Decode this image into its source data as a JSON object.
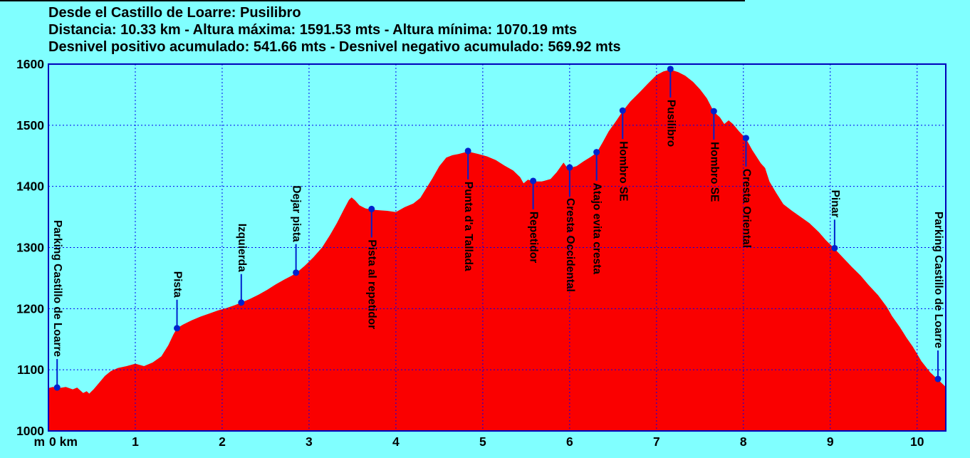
{
  "header": {
    "title": "Desde el Castillo de Loarre: Pusilibro",
    "stats_line1": "Distancia: 10.33 km - Altura máxima: 1591.53 mts - Altura mínima: 1070.19 mts",
    "stats_line2": "Desnivel positivo acumulado: 541.66 mts - Desnivel negativo acumulado: 569.92 mts"
  },
  "colors": {
    "background": "#80ffff",
    "profile_fill": "#fa0000",
    "grid": "#0000ee",
    "frame": "#0000bb",
    "marker": "#0022cc",
    "text": "#000000",
    "top_edge": "#000000"
  },
  "chart_data": {
    "type": "area",
    "title": "Desde el Castillo de Loarre: Pusilibro",
    "xlabel": "km",
    "ylabel": "m",
    "x_origin_label": "0 km",
    "y_unit_label": "m",
    "xlim": [
      0,
      10.33
    ],
    "ylim": [
      1000,
      1600
    ],
    "x_ticks": [
      1,
      2,
      3,
      4,
      5,
      6,
      7,
      8,
      9,
      10
    ],
    "y_ticks": [
      1000,
      1100,
      1200,
      1300,
      1400,
      1500,
      1600
    ],
    "grid": "dashed",
    "profile": [
      [
        0.0,
        1070
      ],
      [
        0.05,
        1072
      ],
      [
        0.12,
        1070
      ],
      [
        0.2,
        1072
      ],
      [
        0.28,
        1068
      ],
      [
        0.33,
        1071
      ],
      [
        0.4,
        1062
      ],
      [
        0.44,
        1065
      ],
      [
        0.47,
        1061
      ],
      [
        0.52,
        1068
      ],
      [
        0.58,
        1078
      ],
      [
        0.65,
        1090
      ],
      [
        0.72,
        1098
      ],
      [
        0.8,
        1103
      ],
      [
        0.9,
        1106
      ],
      [
        1.0,
        1110
      ],
      [
        1.1,
        1106
      ],
      [
        1.2,
        1112
      ],
      [
        1.3,
        1122
      ],
      [
        1.38,
        1140
      ],
      [
        1.44,
        1158
      ],
      [
        1.48,
        1168
      ],
      [
        1.55,
        1174
      ],
      [
        1.65,
        1181
      ],
      [
        1.75,
        1187
      ],
      [
        1.85,
        1192
      ],
      [
        1.95,
        1197
      ],
      [
        2.05,
        1201
      ],
      [
        2.15,
        1206
      ],
      [
        2.22,
        1210
      ],
      [
        2.32,
        1216
      ],
      [
        2.42,
        1223
      ],
      [
        2.52,
        1231
      ],
      [
        2.62,
        1240
      ],
      [
        2.72,
        1248
      ],
      [
        2.79,
        1253
      ],
      [
        2.85,
        1258
      ],
      [
        2.95,
        1270
      ],
      [
        3.05,
        1284
      ],
      [
        3.15,
        1300
      ],
      [
        3.24,
        1320
      ],
      [
        3.32,
        1340
      ],
      [
        3.4,
        1362
      ],
      [
        3.46,
        1378
      ],
      [
        3.49,
        1382
      ],
      [
        3.53,
        1377
      ],
      [
        3.58,
        1369
      ],
      [
        3.65,
        1364
      ],
      [
        3.72,
        1362
      ],
      [
        3.8,
        1361
      ],
      [
        3.9,
        1360
      ],
      [
        4.0,
        1358
      ],
      [
        4.1,
        1366
      ],
      [
        4.2,
        1372
      ],
      [
        4.28,
        1381
      ],
      [
        4.35,
        1397
      ],
      [
        4.42,
        1413
      ],
      [
        4.5,
        1433
      ],
      [
        4.58,
        1447
      ],
      [
        4.65,
        1451
      ],
      [
        4.72,
        1453
      ],
      [
        4.83,
        1457
      ],
      [
        4.95,
        1453
      ],
      [
        5.05,
        1449
      ],
      [
        5.15,
        1443
      ],
      [
        5.25,
        1434
      ],
      [
        5.35,
        1426
      ],
      [
        5.43,
        1415
      ],
      [
        5.47,
        1405
      ],
      [
        5.52,
        1411
      ],
      [
        5.58,
        1408
      ],
      [
        5.68,
        1408
      ],
      [
        5.78,
        1412
      ],
      [
        5.85,
        1423
      ],
      [
        5.93,
        1439
      ],
      [
        5.97,
        1431
      ],
      [
        6.0,
        1430
      ],
      [
        6.08,
        1433
      ],
      [
        6.16,
        1441
      ],
      [
        6.24,
        1448
      ],
      [
        6.31,
        1455
      ],
      [
        6.38,
        1472
      ],
      [
        6.45,
        1490
      ],
      [
        6.53,
        1506
      ],
      [
        6.61,
        1523
      ],
      [
        6.7,
        1539
      ],
      [
        6.8,
        1553
      ],
      [
        6.9,
        1568
      ],
      [
        7.0,
        1582
      ],
      [
        7.08,
        1588
      ],
      [
        7.16,
        1591
      ],
      [
        7.25,
        1587
      ],
      [
        7.33,
        1581
      ],
      [
        7.42,
        1571
      ],
      [
        7.5,
        1559
      ],
      [
        7.58,
        1544
      ],
      [
        7.66,
        1522
      ],
      [
        7.73,
        1513
      ],
      [
        7.78,
        1502
      ],
      [
        7.83,
        1508
      ],
      [
        7.88,
        1502
      ],
      [
        7.95,
        1490
      ],
      [
        8.03,
        1478
      ],
      [
        8.1,
        1460
      ],
      [
        8.2,
        1438
      ],
      [
        8.25,
        1430
      ],
      [
        8.3,
        1408
      ],
      [
        8.38,
        1389
      ],
      [
        8.46,
        1371
      ],
      [
        8.56,
        1360
      ],
      [
        8.65,
        1351
      ],
      [
        8.76,
        1340
      ],
      [
        8.87,
        1325
      ],
      [
        8.95,
        1312
      ],
      [
        9.05,
        1298
      ],
      [
        9.15,
        1283
      ],
      [
        9.25,
        1268
      ],
      [
        9.35,
        1254
      ],
      [
        9.44,
        1239
      ],
      [
        9.55,
        1222
      ],
      [
        9.65,
        1203
      ],
      [
        9.71,
        1188
      ],
      [
        9.8,
        1170
      ],
      [
        9.88,
        1152
      ],
      [
        9.95,
        1138
      ],
      [
        10.05,
        1114
      ],
      [
        10.15,
        1096
      ],
      [
        10.24,
        1084
      ],
      [
        10.33,
        1072
      ]
    ],
    "waypoints": [
      {
        "km": 0.1,
        "elev": 1071,
        "label": "Parking Castillo de Loarre",
        "side": "above"
      },
      {
        "km": 1.48,
        "elev": 1168,
        "label": "Pista",
        "side": "above"
      },
      {
        "km": 2.22,
        "elev": 1210,
        "label": "Izquierda",
        "side": "above"
      },
      {
        "km": 2.85,
        "elev": 1259,
        "label": "Dejar pista",
        "side": "above"
      },
      {
        "km": 3.72,
        "elev": 1363,
        "label": "Pista al repetidor",
        "side": "below"
      },
      {
        "km": 4.83,
        "elev": 1458,
        "label": "Punta d'a Tallada",
        "side": "below"
      },
      {
        "km": 5.58,
        "elev": 1409,
        "label": "Repetidor",
        "side": "below"
      },
      {
        "km": 6.0,
        "elev": 1431,
        "label": "Cresta Occidental",
        "side": "below"
      },
      {
        "km": 6.31,
        "elev": 1456,
        "label": "Atajo evita cresta",
        "side": "below"
      },
      {
        "km": 6.61,
        "elev": 1524,
        "label": "Hombro SE",
        "side": "below"
      },
      {
        "km": 7.16,
        "elev": 1592,
        "label": "Pusilibro",
        "side": "below"
      },
      {
        "km": 7.66,
        "elev": 1523,
        "label": "Hombro SE",
        "side": "below"
      },
      {
        "km": 8.03,
        "elev": 1479,
        "label": "Cresta Oriental",
        "side": "below"
      },
      {
        "km": 9.05,
        "elev": 1299,
        "label": "Pinar",
        "side": "above"
      },
      {
        "km": 10.24,
        "elev": 1085,
        "label": "Parking Castillo de Loarre",
        "side": "above"
      }
    ]
  }
}
